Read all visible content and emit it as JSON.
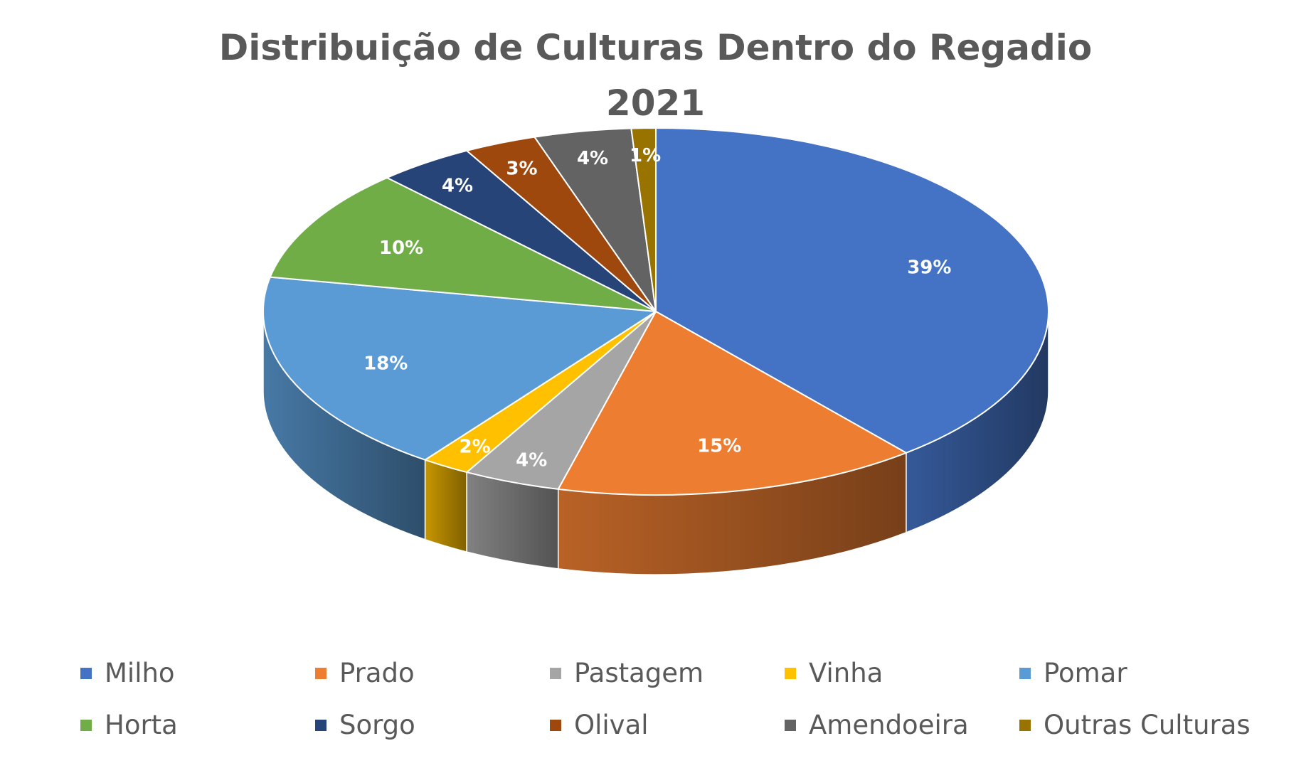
{
  "chart_data": {
    "type": "pie",
    "title": [
      "Distribuição de Culturas Dentro do Regadio",
      "2021"
    ],
    "categories": [
      "Milho",
      "Prado",
      "Pastagem",
      "Vinha",
      "Pomar",
      "Horta",
      "Sorgo",
      "Olival",
      "Amendoeira",
      "Outras Culturas"
    ],
    "values": [
      39,
      15,
      4,
      2,
      18,
      10,
      4,
      3,
      4,
      1
    ],
    "labels": [
      "39%",
      "15%",
      "4%",
      "2%",
      "18%",
      "10%",
      "4%",
      "3%",
      "4%",
      "1%"
    ],
    "colors": [
      "#4472C4",
      "#ED7D31",
      "#A5A5A5",
      "#FFC000",
      "#5B9BD5",
      "#70AD47",
      "#264478",
      "#9E480E",
      "#636363",
      "#997300"
    ],
    "legend_position": "bottom",
    "style": "3d"
  }
}
